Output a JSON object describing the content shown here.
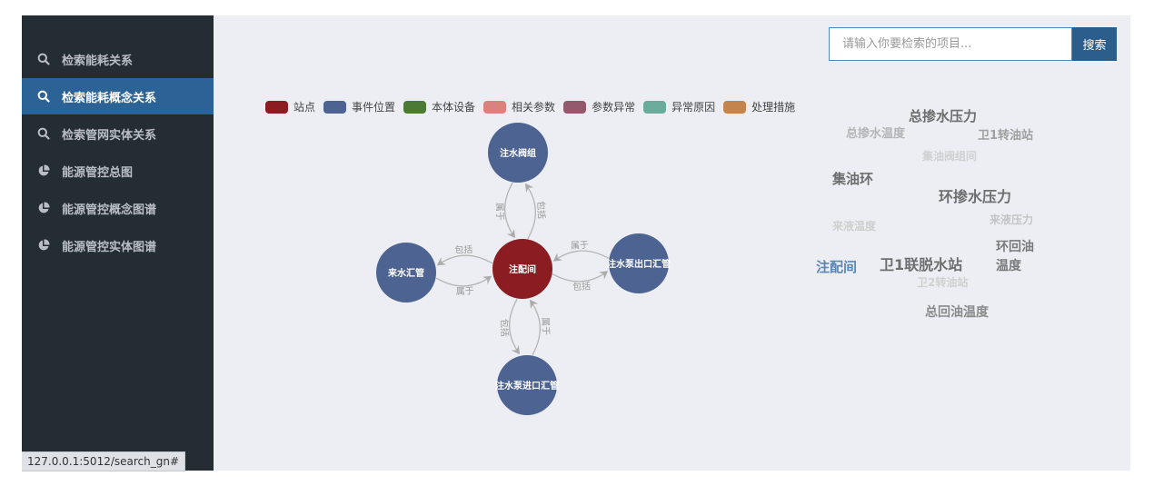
{
  "sidebar": {
    "items": [
      {
        "label": "检索能耗关系",
        "icon": "search-icon",
        "active": false
      },
      {
        "label": "检索能耗概念关系",
        "icon": "search-icon",
        "active": true
      },
      {
        "label": "检索管网实体关系",
        "icon": "search-icon",
        "active": false
      },
      {
        "label": "能源管控总图",
        "icon": "pie-chart-icon",
        "active": false
      },
      {
        "label": "能源管控概念图谱",
        "icon": "pie-chart-icon",
        "active": false
      },
      {
        "label": "能源管控实体图谱",
        "icon": "pie-chart-icon",
        "active": false
      }
    ]
  },
  "search": {
    "placeholder": "请输入你要检索的项目...",
    "value": "",
    "button": "搜索"
  },
  "legend": [
    {
      "label": "站点",
      "color": "#8b1c22"
    },
    {
      "label": "事件位置",
      "color": "#4d6391"
    },
    {
      "label": "本体设备",
      "color": "#4a7a35"
    },
    {
      "label": "相关参数",
      "color": "#d9837c"
    },
    {
      "label": "参数异常",
      "color": "#935a6e"
    },
    {
      "label": "异常原因",
      "color": "#6aab9c"
    },
    {
      "label": "处理措施",
      "color": "#c3854d"
    }
  ],
  "graph": {
    "nodes": [
      {
        "id": "center",
        "label": "注配间",
        "category": "站点"
      },
      {
        "id": "top",
        "label": "注水阀组",
        "category": "事件位置"
      },
      {
        "id": "left",
        "label": "来水汇管",
        "category": "事件位置"
      },
      {
        "id": "right",
        "label": "注水泵出口汇管",
        "category": "事件位置"
      },
      {
        "id": "bottom",
        "label": "注水泵进口汇管",
        "category": "事件位置"
      }
    ],
    "links": [
      {
        "source": "center",
        "target": "top",
        "label": "包括"
      },
      {
        "source": "top",
        "target": "center",
        "label": "属于"
      },
      {
        "source": "left",
        "target": "center",
        "label": "属于"
      },
      {
        "source": "center",
        "target": "left",
        "label": "包括"
      },
      {
        "source": "center",
        "target": "right",
        "label": "包括"
      },
      {
        "source": "right",
        "target": "center",
        "label": "属于"
      },
      {
        "source": "bottom",
        "target": "center",
        "label": "属于"
      },
      {
        "source": "center",
        "target": "bottom",
        "label": "包括"
      }
    ]
  },
  "wordcloud": [
    {
      "text": "总掺水压力",
      "color": "#6e6e6e"
    },
    {
      "text": "总掺水温度",
      "color": "#b5b5b5"
    },
    {
      "text": "卫1转油站",
      "color": "#a0a0a0"
    },
    {
      "text": "集油阀组间",
      "color": "#d0d0d0"
    },
    {
      "text": "集油环",
      "color": "#6e6e6e"
    },
    {
      "text": "环掺水压力",
      "color": "#6e6e6e"
    },
    {
      "text": "来液温度",
      "color": "#cfcfcf"
    },
    {
      "text": "来液压力",
      "color": "#c4c4c4"
    },
    {
      "text": "环回油",
      "color": "#7a7a7a"
    },
    {
      "text": "温度",
      "color": "#7a7a7a"
    },
    {
      "text": "注配间",
      "color": "#5b86b5"
    },
    {
      "text": "卫1联脱水站",
      "color": "#6e6e6e"
    },
    {
      "text": "卫2转油站",
      "color": "#d0d0d0"
    },
    {
      "text": "总回油温度",
      "color": "#8a8a8a"
    }
  ],
  "status_url": "127.0.0.1:5012/search_gn#"
}
